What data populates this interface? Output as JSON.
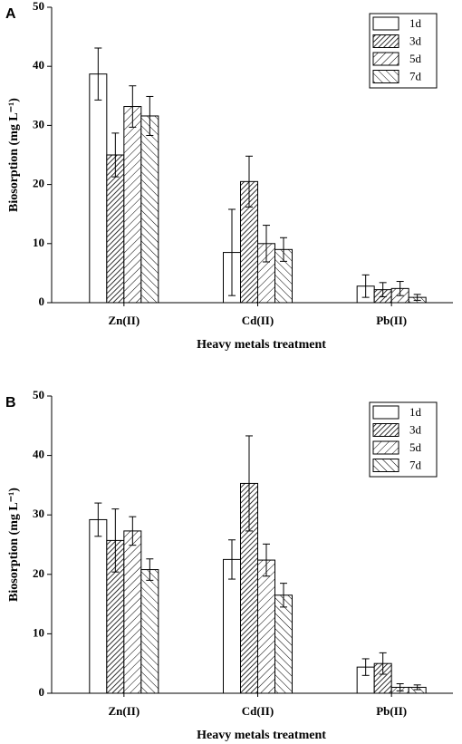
{
  "chart_data": [
    {
      "type": "bar",
      "panel": "A",
      "xlabel": "Heavy metals treatment",
      "ylabel": "Biosorption (mg L⁻¹)",
      "categories": [
        "Zn(II)",
        "Cd(II)",
        "Pb(II)"
      ],
      "ylim": [
        0,
        50
      ],
      "yticks": [
        0,
        10,
        20,
        30,
        40,
        50
      ],
      "legend": "upper right",
      "series": [
        {
          "name": "1d",
          "color": "#000000",
          "hatch": "none",
          "values": [
            38.7,
            8.5,
            2.8
          ],
          "errors": [
            4.4,
            7.3,
            1.9
          ]
        },
        {
          "name": "3d",
          "color": "#000000",
          "hatch": "dense-forward",
          "values": [
            25,
            20.5,
            2.2
          ],
          "errors": [
            3.7,
            4.3,
            1.2
          ]
        },
        {
          "name": "5d",
          "color": "#000000",
          "hatch": "forward",
          "values": [
            33.2,
            10,
            2.4
          ],
          "errors": [
            3.5,
            3.1,
            1.2
          ]
        },
        {
          "name": "7d",
          "color": "#000000",
          "hatch": "back",
          "values": [
            31.6,
            9,
            0.9
          ],
          "errors": [
            3.3,
            2,
            0.5
          ]
        }
      ]
    },
    {
      "type": "bar",
      "panel": "B",
      "xlabel": "Heavy metals treatment",
      "ylabel": "Biosorption (mg L⁻¹)",
      "categories": [
        "Zn(II)",
        "Cd(II)",
        "Pb(II)"
      ],
      "ylim": [
        0,
        50
      ],
      "yticks": [
        0,
        10,
        20,
        30,
        40,
        50
      ],
      "legend": "upper right",
      "series": [
        {
          "name": "1d",
          "color": "#000000",
          "hatch": "none",
          "values": [
            29.2,
            22.5,
            4.4
          ],
          "errors": [
            2.8,
            3.3,
            1.4
          ]
        },
        {
          "name": "3d",
          "color": "#000000",
          "hatch": "dense-forward",
          "values": [
            25.7,
            35.3,
            5
          ],
          "errors": [
            5.3,
            8,
            1.8
          ]
        },
        {
          "name": "5d",
          "color": "#000000",
          "hatch": "forward",
          "values": [
            27.3,
            22.4,
            1
          ],
          "errors": [
            2.4,
            2.7,
            0.6
          ]
        },
        {
          "name": "7d",
          "color": "#000000",
          "hatch": "back",
          "values": [
            20.8,
            16.5,
            1
          ],
          "errors": [
            1.8,
            2,
            0.4
          ]
        }
      ]
    }
  ]
}
